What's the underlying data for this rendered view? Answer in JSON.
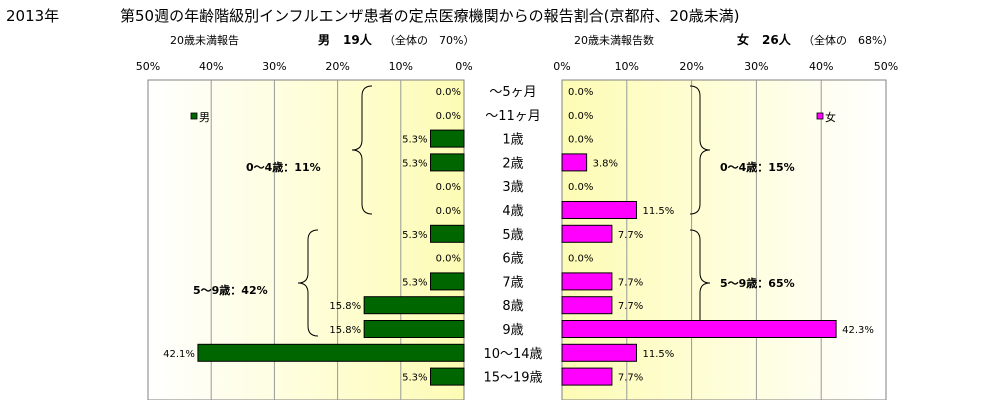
{
  "header": {
    "year": "2013年",
    "title": "第50週の年齢階級別インフルエンザ患者の定点医療機関からの報告割合(京都府、20歳未満)"
  },
  "chart_data": {
    "type": "bar",
    "categories": [
      "～5ヶ月",
      "～11ヶ月",
      "1歳",
      "2歳",
      "3歳",
      "4歳",
      "5歳",
      "6歳",
      "7歳",
      "8歳",
      "9歳",
      "10～14歳",
      "15～19歳"
    ],
    "series": [
      {
        "name": "男",
        "color": "#006600",
        "values": [
          0.0,
          0.0,
          5.3,
          5.3,
          0.0,
          0.0,
          5.3,
          0.0,
          5.3,
          15.8,
          15.8,
          42.1,
          5.3
        ],
        "labels": [
          "0.0%",
          "0.0%",
          "5.3%",
          "5.3%",
          "0.0%",
          "0.0%",
          "5.3%",
          "0.0%",
          "5.3%",
          "15.8%",
          "15.8%",
          "42.1%",
          "5.3%"
        ]
      },
      {
        "name": "女",
        "color": "#ff00ff",
        "values": [
          0.0,
          0.0,
          0.0,
          3.8,
          0.0,
          11.5,
          7.7,
          0.0,
          7.7,
          7.7,
          42.3,
          11.5,
          7.7
        ],
        "labels": [
          "0.0%",
          "0.0%",
          "0.0%",
          "3.8%",
          "0.0%",
          "11.5%",
          "7.7%",
          "0.0%",
          "7.7%",
          "7.7%",
          "42.3%",
          "11.5%",
          "7.7%"
        ]
      }
    ],
    "xlim": [
      0,
      50
    ],
    "ticks": [
      "50%",
      "40%",
      "30%",
      "20%",
      "10%",
      "0%"
    ],
    "ticks_right": [
      "0%",
      "10%",
      "20%",
      "30%",
      "40%",
      "50%"
    ],
    "left_panel": {
      "caption": "20歳未満報告",
      "gender": "男",
      "count": "19人",
      "share": "（全体の　70%）"
    },
    "right_panel": {
      "caption": "20歳未満報告数",
      "gender": "女",
      "count": "26人",
      "share": "（全体の　68%）"
    },
    "groups": {
      "male_0_4": "0～4歳：11%",
      "male_5_9": "5～9歳：42%",
      "female_0_4": "0～4歳：15%",
      "female_5_9": "5～9歳：65%"
    },
    "legend_male": "男",
    "legend_female": "女"
  }
}
